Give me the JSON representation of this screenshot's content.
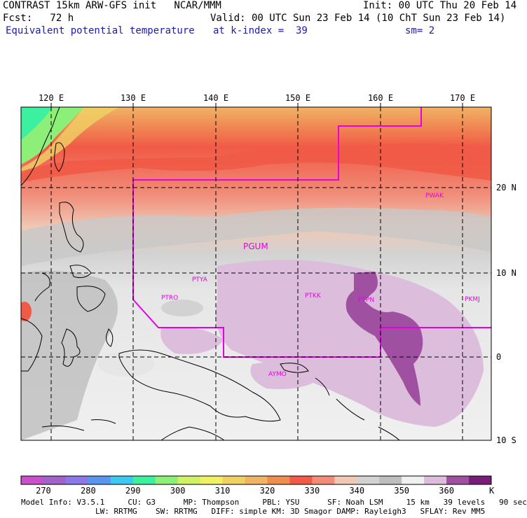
{
  "header": {
    "line1_left": "CONTRAST 15km ARW-GFS init   NCAR/MMM",
    "line1_right": "Init: 00 UTC Thu 20 Feb 14",
    "line2_left": "Fcst:   72 h",
    "line2_right": "Valid: 00 UTC Sun 23 Feb 14 (10 ChT Sun 23 Feb 14)",
    "line3_left": "Equivalent potential temperature",
    "line3_mid": "at k-index =  39",
    "line3_right": "sm= 2"
  },
  "axes": {
    "lon_labels": [
      "120 E",
      "130 E",
      "140 E",
      "150 E",
      "160 E",
      "170 E"
    ],
    "lat_labels": [
      "20 N",
      "10 N",
      "0",
      "10 S"
    ]
  },
  "stations": [
    {
      "id": "PWAK",
      "label": "PWAK"
    },
    {
      "id": "PGUM",
      "label": "PGUM"
    },
    {
      "id": "PTYA",
      "label": "PTYA"
    },
    {
      "id": "PTRO",
      "label": "PTRO"
    },
    {
      "id": "PTKK",
      "label": "PTKK"
    },
    {
      "id": "PTPN",
      "label": "PTPN"
    },
    {
      "id": "PKMJ",
      "label": "PKMJ"
    },
    {
      "id": "AYMO",
      "label": "AYMO"
    }
  ],
  "colorbar": {
    "labels": [
      "270",
      "280",
      "290",
      "300",
      "310",
      "320",
      "330",
      "340",
      "350",
      "360"
    ],
    "unit": "K",
    "colors": [
      "#c850c8",
      "#a064c8",
      "#8c78e6",
      "#5a96f0",
      "#3cc8f0",
      "#3cf0a0",
      "#8cf078",
      "#d2f064",
      "#f0f064",
      "#f0d264",
      "#f0b464",
      "#f08c50",
      "#f05a46",
      "#f08c78",
      "#f0c8b4",
      "#d2d2d2",
      "#bebebe",
      "#f0f0f0",
      "#dcbedc",
      "#a050a0",
      "#781e78"
    ],
    "accent_boundary": "#e600e6"
  },
  "model_info": {
    "line1": "Model Info: V3.5.1     CU: G3      MP: Thompson     PBL: YSU      SF: Noah LSM     15 km   39 levels   90 sec",
    "line2": "                LW: RRTMG    SW: RRTMG   DIFF: simple KM: 3D Smagor DAMP: Rayleigh3   SFLAY: Rev MM5"
  }
}
